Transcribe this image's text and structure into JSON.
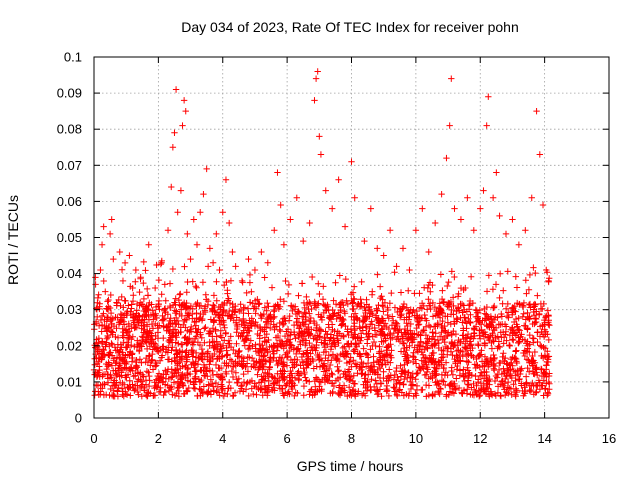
{
  "chart_data": {
    "type": "scatter",
    "title": "Day 034 of 2023, Rate Of TEC Index for receiver pohn",
    "xlabel": "GPS time / hours",
    "ylabel": "ROTI / TECUs",
    "xlim": [
      0,
      16
    ],
    "ylim": [
      0,
      0.1
    ],
    "x_ticks": [
      "0",
      "2",
      "4",
      "6",
      "8",
      "10",
      "12",
      "14",
      "16"
    ],
    "y_ticks": [
      "0",
      "0.01",
      "0.02",
      "0.03",
      "0.04",
      "0.05",
      "0.06",
      "0.07",
      "0.08",
      "0.09",
      "0.1"
    ],
    "grid": true,
    "marker": "+",
    "color": "#ff0000",
    "data_extent_hours": [
      0.0,
      14.15
    ],
    "series": [
      {
        "name": "ROTI",
        "points": [
          [
            0.02,
            0.012
          ],
          [
            0.05,
            0.037
          ],
          [
            0.1,
            0.028
          ],
          [
            0.15,
            0.019
          ],
          [
            0.2,
            0.041
          ],
          [
            0.25,
            0.048
          ],
          [
            0.3,
            0.053
          ],
          [
            0.35,
            0.035
          ],
          [
            0.4,
            0.024
          ],
          [
            0.5,
            0.051
          ],
          [
            0.55,
            0.055
          ],
          [
            0.6,
            0.044
          ],
          [
            0.7,
            0.032
          ],
          [
            0.8,
            0.046
          ],
          [
            0.9,
            0.038
          ],
          [
            1.0,
            0.029
          ],
          [
            1.1,
            0.045
          ],
          [
            1.2,
            0.036
          ],
          [
            1.3,
            0.041
          ],
          [
            1.45,
            0.039
          ],
          [
            1.55,
            0.033
          ],
          [
            1.7,
            0.048
          ],
          [
            1.8,
            0.026
          ],
          [
            1.9,
            0.036
          ],
          [
            2.0,
            0.031
          ],
          [
            2.1,
            0.043
          ],
          [
            2.2,
            0.037
          ],
          [
            2.3,
            0.052
          ],
          [
            2.4,
            0.064
          ],
          [
            2.45,
            0.075
          ],
          [
            2.5,
            0.079
          ],
          [
            2.55,
            0.091
          ],
          [
            2.6,
            0.057
          ],
          [
            2.7,
            0.063
          ],
          [
            2.75,
            0.081
          ],
          [
            2.8,
            0.088
          ],
          [
            2.85,
            0.085
          ],
          [
            2.9,
            0.051
          ],
          [
            3.0,
            0.044
          ],
          [
            3.1,
            0.055
          ],
          [
            3.2,
            0.048
          ],
          [
            3.3,
            0.057
          ],
          [
            3.4,
            0.062
          ],
          [
            3.5,
            0.069
          ],
          [
            3.6,
            0.047
          ],
          [
            3.7,
            0.043
          ],
          [
            3.8,
            0.051
          ],
          [
            3.9,
            0.041
          ],
          [
            4.0,
            0.057
          ],
          [
            4.1,
            0.066
          ],
          [
            4.2,
            0.054
          ],
          [
            4.3,
            0.046
          ],
          [
            4.4,
            0.042
          ],
          [
            4.6,
            0.038
          ],
          [
            4.8,
            0.044
          ],
          [
            5.0,
            0.041
          ],
          [
            5.2,
            0.046
          ],
          [
            5.4,
            0.043
          ],
          [
            5.6,
            0.052
          ],
          [
            5.7,
            0.068
          ],
          [
            5.8,
            0.059
          ],
          [
            5.9,
            0.048
          ],
          [
            6.1,
            0.055
          ],
          [
            6.3,
            0.061
          ],
          [
            6.5,
            0.049
          ],
          [
            6.7,
            0.054
          ],
          [
            6.85,
            0.088
          ],
          [
            6.9,
            0.094
          ],
          [
            6.95,
            0.096
          ],
          [
            7.0,
            0.078
          ],
          [
            7.05,
            0.073
          ],
          [
            7.2,
            0.063
          ],
          [
            7.4,
            0.058
          ],
          [
            7.6,
            0.066
          ],
          [
            7.8,
            0.053
          ],
          [
            8.0,
            0.071
          ],
          [
            8.1,
            0.061
          ],
          [
            8.4,
            0.049
          ],
          [
            8.6,
            0.058
          ],
          [
            8.8,
            0.047
          ],
          [
            9.0,
            0.045
          ],
          [
            9.2,
            0.052
          ],
          [
            9.4,
            0.042
          ],
          [
            9.6,
            0.047
          ],
          [
            9.8,
            0.041
          ],
          [
            10.0,
            0.052
          ],
          [
            10.2,
            0.058
          ],
          [
            10.4,
            0.046
          ],
          [
            10.6,
            0.054
          ],
          [
            10.8,
            0.062
          ],
          [
            10.95,
            0.072
          ],
          [
            11.05,
            0.081
          ],
          [
            11.1,
            0.094
          ],
          [
            11.2,
            0.058
          ],
          [
            11.4,
            0.055
          ],
          [
            11.6,
            0.061
          ],
          [
            11.8,
            0.052
          ],
          [
            12.0,
            0.058
          ],
          [
            12.1,
            0.063
          ],
          [
            12.2,
            0.081
          ],
          [
            12.25,
            0.089
          ],
          [
            12.4,
            0.061
          ],
          [
            12.5,
            0.068
          ],
          [
            12.6,
            0.056
          ],
          [
            12.8,
            0.051
          ],
          [
            13.0,
            0.055
          ],
          [
            13.2,
            0.048
          ],
          [
            13.4,
            0.052
          ],
          [
            13.6,
            0.061
          ],
          [
            13.75,
            0.085
          ],
          [
            13.85,
            0.073
          ],
          [
            13.95,
            0.059
          ],
          [
            14.05,
            0.041
          ],
          [
            14.12,
            0.038
          ]
        ]
      }
    ]
  }
}
